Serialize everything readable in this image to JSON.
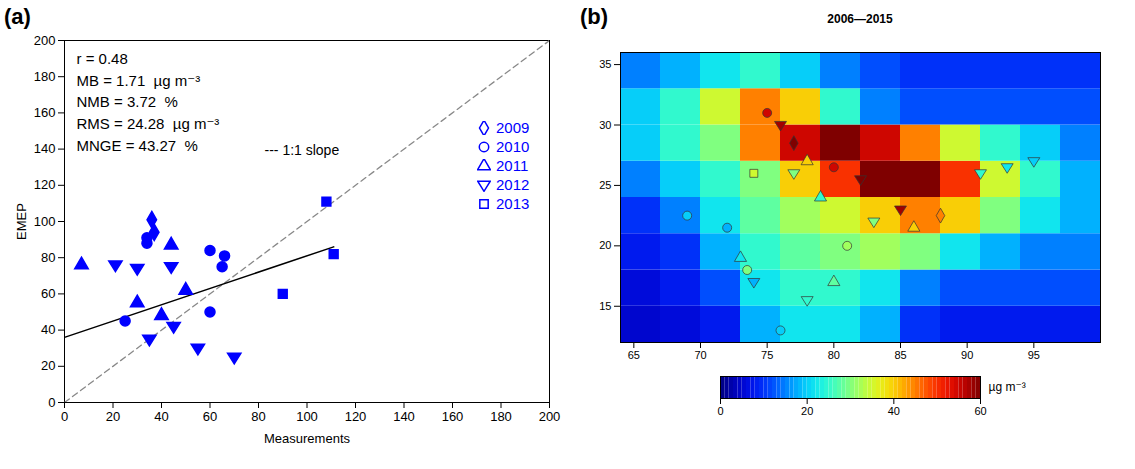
{
  "chart_data": [
    {
      "panel_label": "(a)",
      "type": "scatter",
      "x_label": "Measurements",
      "y_label": "EMEP",
      "xlim": [
        0,
        200
      ],
      "ylim": [
        0,
        200
      ],
      "xticks": [
        0,
        20,
        40,
        60,
        80,
        100,
        120,
        140,
        160,
        180,
        200
      ],
      "yticks": [
        0,
        20,
        40,
        60,
        80,
        100,
        120,
        140,
        160,
        180,
        200
      ],
      "legend": "top-right",
      "series": [
        {
          "name": "2009",
          "marker": "diamond",
          "color": "#0000ff",
          "x": [
            36,
            37
          ],
          "values": [
            101,
            94
          ]
        },
        {
          "name": "2010",
          "marker": "circle",
          "color": "#0000ff",
          "x": [
            34,
            34,
            60,
            66,
            65,
            25,
            60
          ],
          "values": [
            91,
            88,
            84,
            81,
            75,
            45,
            50
          ]
        },
        {
          "name": "2011",
          "marker": "triangle",
          "color": "#0000ff",
          "x": [
            7,
            44,
            30,
            40,
            50
          ],
          "values": [
            76,
            87,
            55,
            48,
            62
          ]
        },
        {
          "name": "2012",
          "marker": "triangle-down",
          "color": "#0000ff",
          "x": [
            21,
            30,
            44,
            35,
            45,
            55,
            70
          ],
          "values": [
            76,
            74,
            75,
            35,
            42,
            30,
            25
          ]
        },
        {
          "name": "2013",
          "marker": "square",
          "color": "#0000ff",
          "x": [
            108,
            111,
            90
          ],
          "values": [
            111,
            82,
            60
          ]
        }
      ],
      "annotations": [
        "r = 0.48",
        "MB = 1.71  µg m⁻³",
        "NMB = 3.72  %",
        "RMS = 24.28  µg m⁻³",
        "MNGE = 43.27  %"
      ],
      "reference_line": {
        "label": "--- 1:1 slope",
        "line_style": "dashed",
        "color": "#888888",
        "x": [
          0,
          200
        ],
        "values": [
          0,
          200
        ]
      },
      "fit": {
        "line_style": "solid",
        "color": "#000000",
        "x": [
          0,
          111
        ],
        "values": [
          36,
          86
        ]
      }
    },
    {
      "panel_label": "(b)",
      "type": "map",
      "title": "2006—2015",
      "xlim": [
        64,
        100
      ],
      "ylim": [
        12,
        36
      ],
      "xticks": [
        65,
        70,
        75,
        80,
        85,
        90,
        95
      ],
      "yticks": [
        15,
        20,
        25,
        30,
        35
      ],
      "cells": {
        "lon_edges": [
          64,
          67,
          70,
          73,
          76,
          79,
          82,
          85,
          88,
          91,
          94,
          97,
          100
        ],
        "lat_edges": [
          12,
          15,
          18,
          21,
          24,
          27,
          30,
          33,
          36
        ],
        "values": [
          [
            5,
            6,
            8,
            18,
            22,
            22,
            18,
            10,
            8,
            8,
            8,
            8
          ],
          [
            6,
            8,
            12,
            22,
            25,
            25,
            22,
            15,
            12,
            12,
            12,
            12
          ],
          [
            8,
            10,
            18,
            25,
            28,
            30,
            32,
            30,
            22,
            18,
            15,
            15
          ],
          [
            10,
            15,
            22,
            28,
            32,
            35,
            40,
            45,
            40,
            30,
            22,
            18
          ],
          [
            15,
            20,
            25,
            30,
            40,
            50,
            60,
            60,
            50,
            35,
            25,
            18
          ],
          [
            20,
            25,
            30,
            45,
            55,
            60,
            55,
            45,
            35,
            25,
            20,
            15
          ],
          [
            20,
            25,
            35,
            45,
            40,
            25,
            15,
            12,
            12,
            12,
            12,
            12
          ],
          [
            15,
            18,
            22,
            25,
            20,
            15,
            12,
            10,
            10,
            10,
            10,
            10
          ]
        ]
      },
      "colorbar": {
        "range": [
          0,
          60
        ],
        "ticks": [
          0,
          20,
          40,
          60
        ],
        "label": "µg m⁻³"
      },
      "stations": {
        "lon": [
          69,
          72,
          73,
          73.5,
          74,
          75,
          76,
          77,
          78,
          77,
          79,
          80,
          82,
          83,
          85,
          86,
          88,
          80,
          78,
          76,
          91,
          93,
          95,
          74,
          81
        ],
        "lat": [
          22.5,
          21.5,
          19,
          18,
          17,
          31,
          30,
          28.5,
          27,
          26,
          24,
          26.5,
          25.5,
          22,
          23,
          21.5,
          22.5,
          17,
          15.5,
          13,
          26,
          26.5,
          27,
          26,
          20
        ],
        "values": [
          20,
          18,
          22,
          30,
          18,
          55,
          58,
          60,
          40,
          30,
          25,
          55,
          60,
          30,
          58,
          40,
          45,
          28,
          25,
          20,
          25,
          22,
          20,
          35,
          32
        ],
        "year": [
          "2010",
          "2010",
          "2011",
          "2010",
          "2012",
          "2010",
          "2012",
          "2009",
          "2011",
          "2012",
          "2011",
          "2010",
          "2012",
          "2012",
          "2012",
          "2011",
          "2009",
          "2011",
          "2012",
          "2010",
          "2012",
          "2012",
          "2012",
          "2013",
          "2010"
        ]
      }
    }
  ]
}
